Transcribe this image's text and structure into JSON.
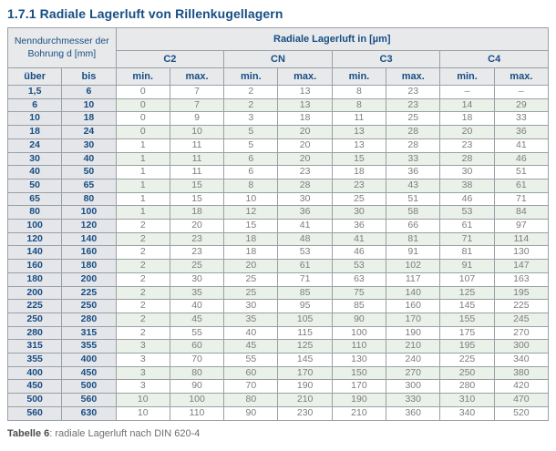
{
  "page_title": "1.7.1 Radiale Lagerluft von Rillenkugellagern",
  "table": {
    "header": {
      "diameter_label": "Nenndurchmesser der Bohrung d [mm]",
      "clearance_label": "Radiale Lagerluft in [µm]",
      "class_labels": [
        "C2",
        "CN",
        "C3",
        "C4"
      ],
      "col_uber": "über",
      "col_bis": "bis",
      "subheaders": [
        "min.",
        "max.",
        "min.",
        "max.",
        "min.",
        "max.",
        "min.",
        "max."
      ]
    },
    "rows": [
      [
        "1,5",
        "6",
        "0",
        "7",
        "2",
        "13",
        "8",
        "23",
        "–",
        "–"
      ],
      [
        "6",
        "10",
        "0",
        "7",
        "2",
        "13",
        "8",
        "23",
        "14",
        "29"
      ],
      [
        "10",
        "18",
        "0",
        "9",
        "3",
        "18",
        "11",
        "25",
        "18",
        "33"
      ],
      [
        "18",
        "24",
        "0",
        "10",
        "5",
        "20",
        "13",
        "28",
        "20",
        "36"
      ],
      [
        "24",
        "30",
        "1",
        "11",
        "5",
        "20",
        "13",
        "28",
        "23",
        "41"
      ],
      [
        "30",
        "40",
        "1",
        "11",
        "6",
        "20",
        "15",
        "33",
        "28",
        "46"
      ],
      [
        "40",
        "50",
        "1",
        "11",
        "6",
        "23",
        "18",
        "36",
        "30",
        "51"
      ],
      [
        "50",
        "65",
        "1",
        "15",
        "8",
        "28",
        "23",
        "43",
        "38",
        "61"
      ],
      [
        "65",
        "80",
        "1",
        "15",
        "10",
        "30",
        "25",
        "51",
        "46",
        "71"
      ],
      [
        "80",
        "100",
        "1",
        "18",
        "12",
        "36",
        "30",
        "58",
        "53",
        "84"
      ],
      [
        "100",
        "120",
        "2",
        "20",
        "15",
        "41",
        "36",
        "66",
        "61",
        "97"
      ],
      [
        "120",
        "140",
        "2",
        "23",
        "18",
        "48",
        "41",
        "81",
        "71",
        "114"
      ],
      [
        "140",
        "160",
        "2",
        "23",
        "18",
        "53",
        "46",
        "91",
        "81",
        "130"
      ],
      [
        "160",
        "180",
        "2",
        "25",
        "20",
        "61",
        "53",
        "102",
        "91",
        "147"
      ],
      [
        "180",
        "200",
        "2",
        "30",
        "25",
        "71",
        "63",
        "117",
        "107",
        "163"
      ],
      [
        "200",
        "225",
        "2",
        "35",
        "25",
        "85",
        "75",
        "140",
        "125",
        "195"
      ],
      [
        "225",
        "250",
        "2",
        "40",
        "30",
        "95",
        "85",
        "160",
        "145",
        "225"
      ],
      [
        "250",
        "280",
        "2",
        "45",
        "35",
        "105",
        "90",
        "170",
        "155",
        "245"
      ],
      [
        "280",
        "315",
        "2",
        "55",
        "40",
        "115",
        "100",
        "190",
        "175",
        "270"
      ],
      [
        "315",
        "355",
        "3",
        "60",
        "45",
        "125",
        "110",
        "210",
        "195",
        "300"
      ],
      [
        "355",
        "400",
        "3",
        "70",
        "55",
        "145",
        "130",
        "240",
        "225",
        "340"
      ],
      [
        "400",
        "450",
        "3",
        "80",
        "60",
        "170",
        "150",
        "270",
        "250",
        "380"
      ],
      [
        "450",
        "500",
        "3",
        "90",
        "70",
        "190",
        "170",
        "300",
        "280",
        "420"
      ],
      [
        "500",
        "560",
        "10",
        "100",
        "80",
        "210",
        "190",
        "330",
        "310",
        "470"
      ],
      [
        "560",
        "630",
        "10",
        "110",
        "90",
        "230",
        "210",
        "360",
        "340",
        "520"
      ]
    ]
  },
  "caption": {
    "bold": "Tabelle 6",
    "rest": ": radiale Lagerluft nach DIN 620-4"
  },
  "colors": {
    "accent_blue": "#174e84",
    "header_bg": "#e8e9eb",
    "diameter_col_bg": "#e5e6e9",
    "row_alt_green": "#e9f1e9",
    "data_text": "#7d7d7d",
    "border": "#9aa0a6"
  }
}
